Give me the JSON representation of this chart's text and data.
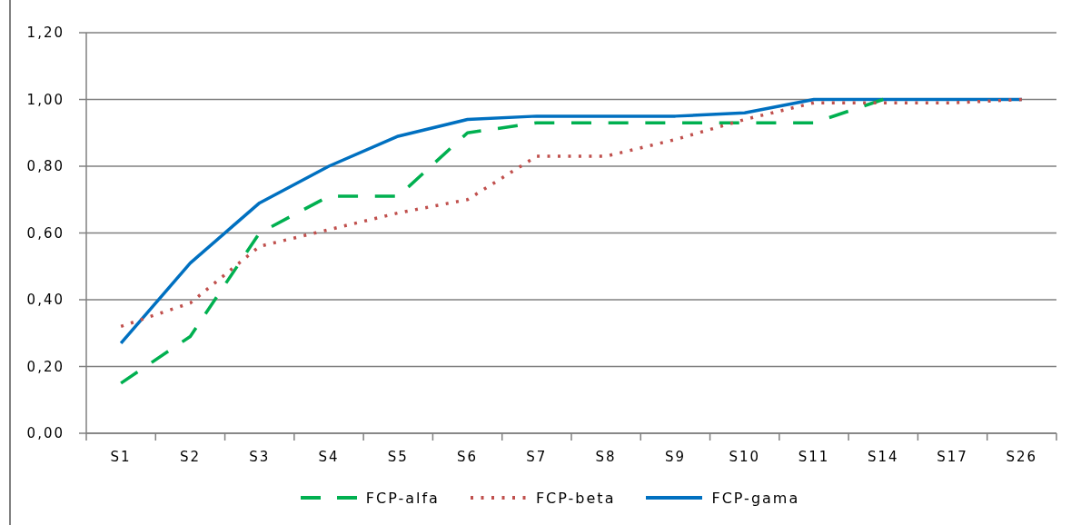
{
  "chart_data": {
    "type": "line",
    "categories": [
      "S1",
      "S2",
      "S3",
      "S4",
      "S5",
      "S6",
      "S7",
      "S8",
      "S9",
      "S10",
      "S11",
      "S14",
      "S17",
      "S26"
    ],
    "series": [
      {
        "name": "FCP-alfa",
        "color": "#00b050",
        "line_style": "dashed",
        "values": [
          0.15,
          0.29,
          0.6,
          0.71,
          0.71,
          0.9,
          0.93,
          0.93,
          0.93,
          0.93,
          0.93,
          1.0,
          null,
          null
        ]
      },
      {
        "name": "FCP-beta",
        "color": "#c0504d",
        "line_style": "dotted",
        "values": [
          0.32,
          0.39,
          0.56,
          0.61,
          0.66,
          0.7,
          0.83,
          0.83,
          0.88,
          0.94,
          0.99,
          0.99,
          0.99,
          1.0
        ]
      },
      {
        "name": "FCP-gama",
        "color": "#0070c0",
        "line_style": "solid",
        "values": [
          0.27,
          0.51,
          0.69,
          0.8,
          0.89,
          0.94,
          0.95,
          0.95,
          0.95,
          0.96,
          1.0,
          1.0,
          1.0,
          1.0
        ]
      }
    ],
    "ylim": [
      0,
      1.2
    ],
    "yticks": [
      {
        "value": 0,
        "label": "0,00"
      },
      {
        "value": 0.2,
        "label": "0,20"
      },
      {
        "value": 0.4,
        "label": "0,40"
      },
      {
        "value": 0.6,
        "label": "0,60"
      },
      {
        "value": 0.8,
        "label": "0,80"
      },
      {
        "value": 1.0,
        "label": "1,00"
      },
      {
        "value": 1.2,
        "label": "1,20"
      }
    ],
    "grid": "y",
    "legend": "bottom"
  }
}
